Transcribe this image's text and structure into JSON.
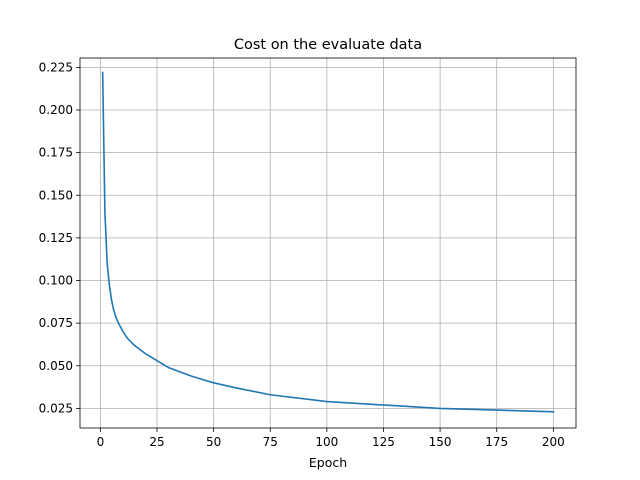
{
  "chart_data": {
    "type": "line",
    "title": "Cost on the evaluate data",
    "xlabel": "Epoch",
    "ylabel": "",
    "xlim": [
      -9,
      210
    ],
    "ylim": [
      0.0135,
      0.2305
    ],
    "xticks": [
      0,
      25,
      50,
      75,
      100,
      125,
      150,
      175,
      200
    ],
    "xtick_labels": [
      "0",
      "25",
      "50",
      "75",
      "100",
      "125",
      "150",
      "175",
      "200"
    ],
    "yticks": [
      0.025,
      0.05,
      0.075,
      0.1,
      0.125,
      0.15,
      0.175,
      0.2,
      0.225
    ],
    "ytick_labels": [
      "0.025",
      "0.050",
      "0.075",
      "0.100",
      "0.125",
      "0.150",
      "0.175",
      "0.200",
      "0.225"
    ],
    "grid": true,
    "legend": "none",
    "series": [
      {
        "color": "#1f77b4",
        "x": [
          1,
          2,
          3,
          4,
          5,
          6,
          7,
          8,
          10,
          12,
          15,
          20,
          25,
          30,
          40,
          50,
          60,
          75,
          100,
          125,
          150,
          175,
          200
        ],
        "y": [
          0.222,
          0.14,
          0.11,
          0.097,
          0.088,
          0.082,
          0.078,
          0.075,
          0.07,
          0.066,
          0.062,
          0.057,
          0.053,
          0.049,
          0.044,
          0.04,
          0.037,
          0.033,
          0.029,
          0.027,
          0.025,
          0.024,
          0.023
        ]
      }
    ]
  }
}
